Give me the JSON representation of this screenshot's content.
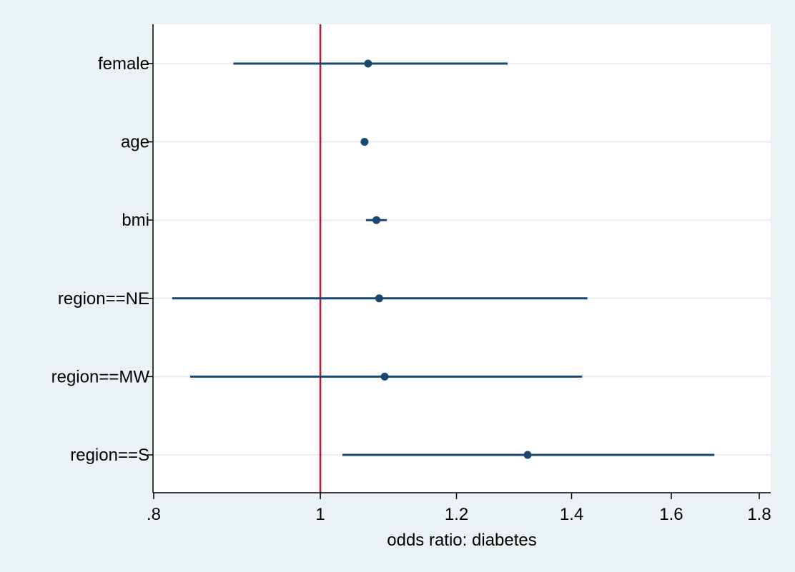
{
  "chart_data": {
    "type": "scatter",
    "subtype": "coefficient-plot",
    "title": "",
    "xlabel": "odds ratio: diabetes",
    "ylabel": "",
    "xlim": [
      0.8,
      1.8
    ],
    "x_scale": "log",
    "x_ticks": [
      0.8,
      1,
      1.2,
      1.4,
      1.6,
      1.8
    ],
    "x_tick_labels": [
      ".8",
      "1",
      "1.2",
      "1.4",
      "1.6",
      "1.8"
    ],
    "reference_line": {
      "x": 1,
      "color": "#c8102e"
    },
    "grid": "horizontal",
    "legend": "none",
    "marker_color": "#1a476f",
    "series": [
      {
        "points": [
          {
            "label": "female",
            "estimate": 1.066,
            "ci_low": 0.89,
            "ci_high": 1.285
          },
          {
            "label": "age",
            "estimate": 1.061,
            "ci_low": 1.057,
            "ci_high": 1.066
          },
          {
            "label": "bmi",
            "estimate": 1.078,
            "ci_low": 1.063,
            "ci_high": 1.093
          },
          {
            "label": "region==NE",
            "estimate": 1.082,
            "ci_low": 0.82,
            "ci_high": 1.43
          },
          {
            "label": "region==MW",
            "estimate": 1.09,
            "ci_low": 0.84,
            "ci_high": 1.42
          },
          {
            "label": "region==S",
            "estimate": 1.32,
            "ci_low": 1.03,
            "ci_high": 1.695
          }
        ]
      }
    ]
  }
}
